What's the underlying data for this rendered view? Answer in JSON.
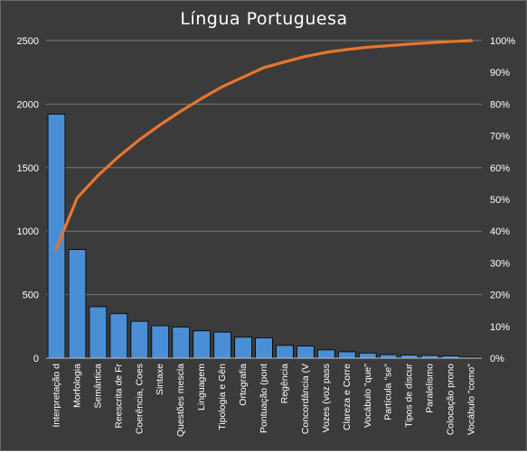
{
  "chart_data": {
    "type": "bar",
    "title": "Língua Portuguesa",
    "categories": [
      "Interpretação d",
      "Morfologia",
      "Semântica",
      "Reescrita de Fr",
      "Coerência, Coes",
      "Sintaxe",
      "Questões mescla",
      "Linguagem",
      "Tipologia e Gên",
      "Ortografia",
      "Pontuação (pont",
      "Regência",
      "Concordância (V",
      "Vozes (voz pass",
      "Clareza e Corre",
      "Vocábulo \"que\"",
      "Partícula \"se\"",
      "Tipos de discur",
      "Paralelismo",
      "Colocação prono",
      "Vocábulo \"como\""
    ],
    "series": [
      {
        "type": "bar",
        "axis": "left",
        "values": [
          1920,
          855,
          405,
          350,
          290,
          255,
          245,
          215,
          205,
          165,
          160,
          100,
          95,
          65,
          50,
          40,
          28,
          25,
          22,
          18,
          8
        ]
      },
      {
        "type": "line",
        "axis": "right",
        "values": [
          34.5,
          50.5,
          57.5,
          63.5,
          68.8,
          73.5,
          77.8,
          81.8,
          85.5,
          88.5,
          91.5,
          93.3,
          95.0,
          96.3,
          97.2,
          97.9,
          98.4,
          98.9,
          99.3,
          99.7,
          100
        ]
      }
    ],
    "y_left": {
      "min": 0,
      "max": 2500,
      "ticks": [
        "0",
        "500",
        "1000",
        "1500",
        "2000",
        "2500"
      ]
    },
    "y_right": {
      "min": 0,
      "max": 100,
      "ticks": [
        "0%",
        "10%",
        "20%",
        "30%",
        "40%",
        "50%",
        "60%",
        "70%",
        "80%",
        "90%",
        "100%"
      ]
    },
    "grid": true,
    "legend": "none",
    "colors": {
      "background": "#3b3b3b",
      "bar_fill": "#4a8fd6",
      "bar_stroke": "#000000",
      "line": "#e8752e",
      "grid": "#7a7a7a",
      "text": "#ffffff"
    }
  }
}
